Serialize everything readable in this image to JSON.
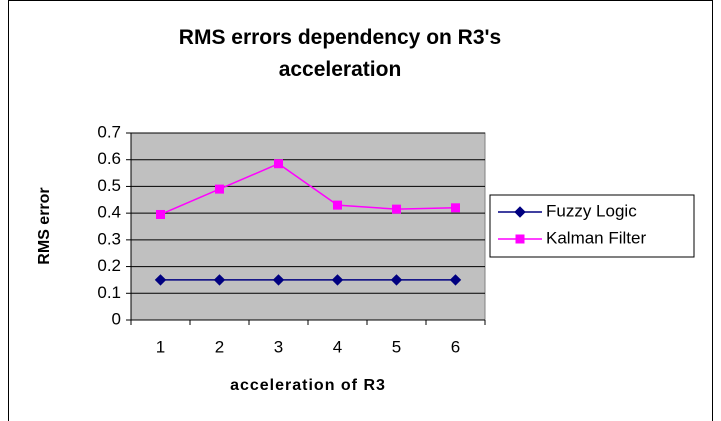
{
  "chart_data": {
    "type": "line",
    "title": "RMS errors dependency on R3's acceleration",
    "x_label": "acceleration of R3",
    "y_label": "RMS error",
    "categories": [
      "1",
      "2",
      "3",
      "4",
      "5",
      "6"
    ],
    "series": [
      {
        "name": "Fuzzy Logic",
        "color": "#000080",
        "marker": "diamond",
        "values": [
          0.15,
          0.15,
          0.15,
          0.15,
          0.15,
          0.15
        ]
      },
      {
        "name": "Kalman Filter",
        "color": "#ff00ff",
        "marker": "square",
        "values": [
          0.395,
          0.49,
          0.585,
          0.43,
          0.415,
          0.42
        ]
      }
    ],
    "ylim": [
      0,
      0.7
    ],
    "yticks": [
      0,
      0.1,
      0.2,
      0.3,
      0.4,
      0.5,
      0.6,
      0.7
    ],
    "grid": true,
    "legend": "right",
    "plot_background": "#c0c0c0"
  }
}
